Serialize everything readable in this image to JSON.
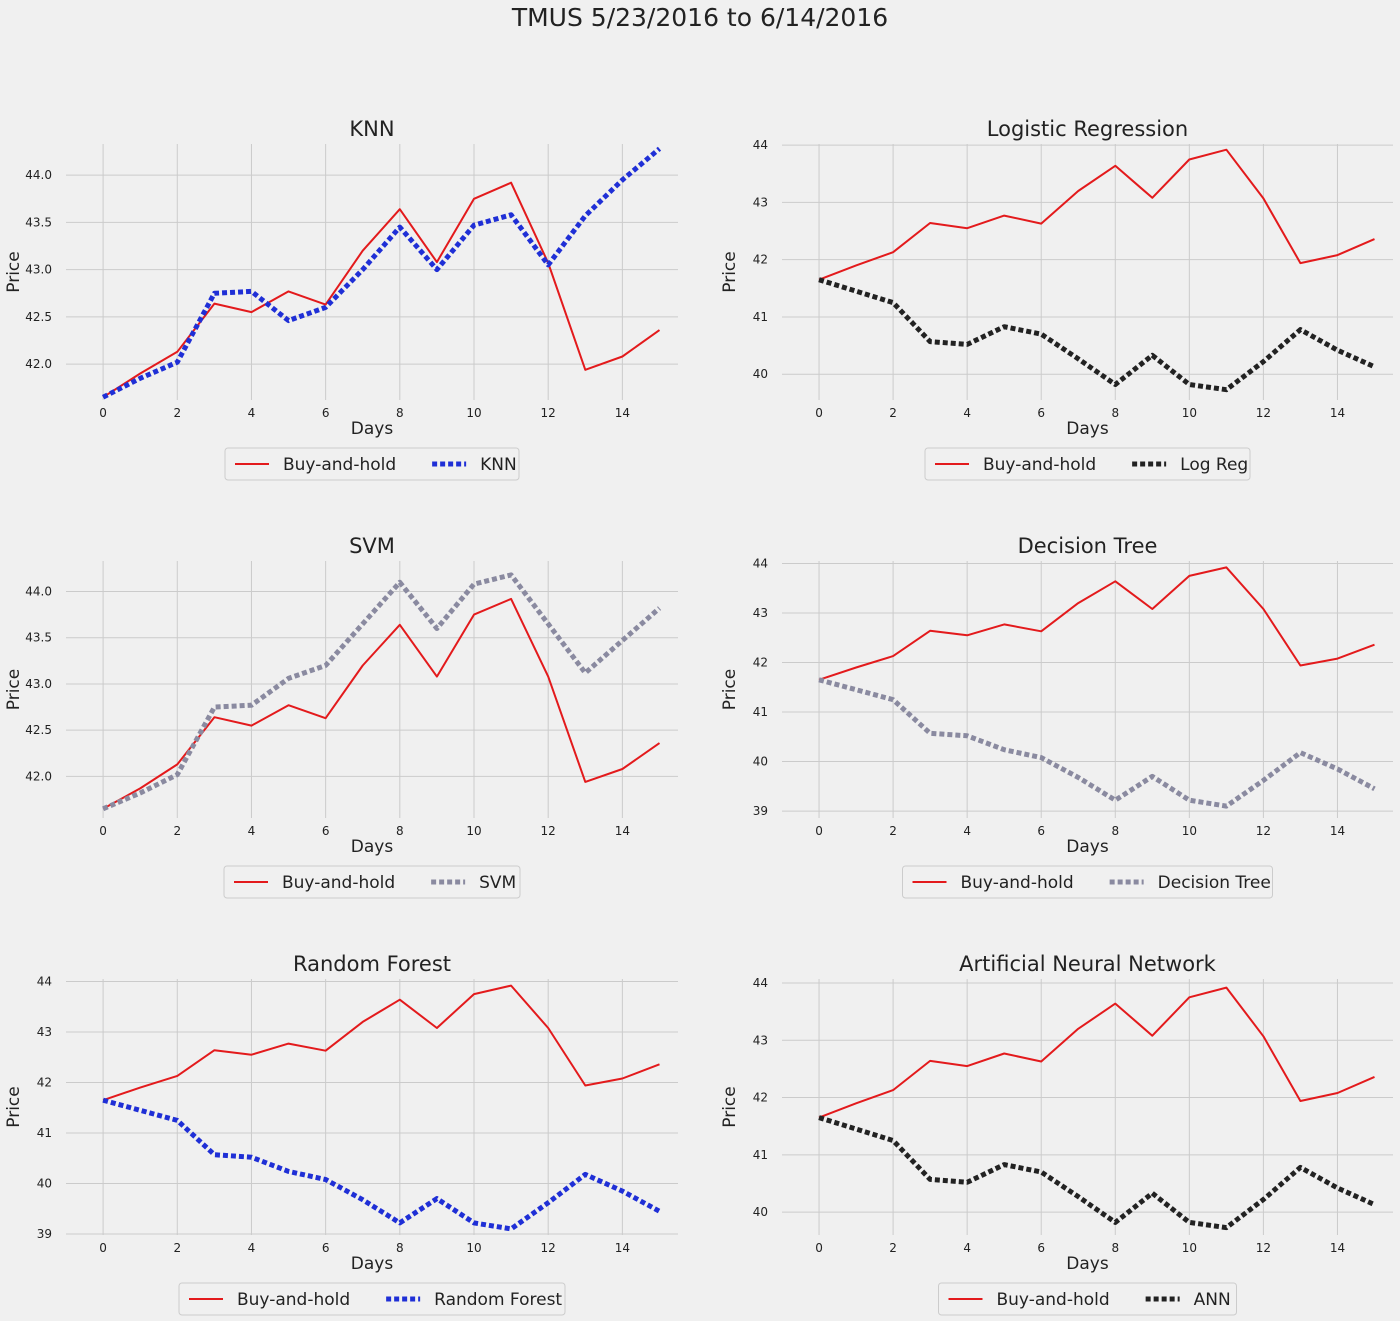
{
  "title": "TMUS 5/23/2016 to 6/14/2016",
  "colors": {
    "background": "#f0f0f0",
    "grid": "#cbcbcb",
    "buyhold": "#e31a1c",
    "blue": "#1f2fd6",
    "black": "#222222",
    "gray": "#8a8aa0"
  },
  "chart_data": [
    {
      "type": "line",
      "title": "KNN",
      "xlabel": "Days",
      "ylabel": "Price",
      "xlim": [
        -1,
        15.5
      ],
      "ylim": [
        41.62,
        44.33
      ],
      "xticks": [
        0,
        2,
        4,
        6,
        8,
        10,
        12,
        14
      ],
      "yticks": [
        42.0,
        42.5,
        43.0,
        43.5,
        44.0
      ],
      "ytick_labels": [
        "42.0",
        "42.5",
        "43.0",
        "43.5",
        "44.0"
      ],
      "x": [
        0,
        1,
        2,
        3,
        4,
        5,
        6,
        7,
        8,
        9,
        10,
        11,
        12,
        13,
        14,
        15
      ],
      "series": [
        {
          "name": "Buy-and-hold",
          "style": "solid",
          "color": "#e31a1c",
          "values": [
            41.65,
            41.9,
            42.13,
            42.64,
            42.55,
            42.77,
            42.63,
            43.2,
            43.64,
            43.08,
            43.75,
            43.92,
            43.07,
            41.94,
            42.08,
            42.36
          ]
        },
        {
          "name": "KNN",
          "style": "dotted",
          "color": "#1f2fd6",
          "values": [
            41.65,
            41.85,
            42.02,
            42.75,
            42.77,
            42.46,
            42.6,
            43.0,
            43.45,
            43.0,
            43.47,
            43.58,
            43.05,
            43.57,
            43.95,
            44.28
          ]
        }
      ],
      "legend": "below"
    },
    {
      "type": "line",
      "title": "Logistic Regression",
      "xlabel": "Days",
      "ylabel": "Price",
      "xlim": [
        -1,
        15.5
      ],
      "ylim": [
        39.55,
        44.02
      ],
      "xticks": [
        0,
        2,
        4,
        6,
        8,
        10,
        12,
        14
      ],
      "yticks": [
        40,
        41,
        42,
        43,
        44
      ],
      "ytick_labels": [
        "40",
        "41",
        "42",
        "43",
        "44"
      ],
      "x": [
        0,
        1,
        2,
        3,
        4,
        5,
        6,
        7,
        8,
        9,
        10,
        11,
        12,
        13,
        14,
        15
      ],
      "series": [
        {
          "name": "Buy-and-hold",
          "style": "solid",
          "color": "#e31a1c",
          "values": [
            41.65,
            41.9,
            42.13,
            42.64,
            42.55,
            42.77,
            42.63,
            43.2,
            43.64,
            43.08,
            43.75,
            43.92,
            43.07,
            41.94,
            42.08,
            42.36
          ]
        },
        {
          "name": "Log Reg",
          "style": "dotted",
          "color": "#222222",
          "values": [
            41.65,
            41.45,
            41.25,
            40.57,
            40.52,
            40.83,
            40.7,
            40.27,
            39.82,
            40.33,
            39.82,
            39.73,
            40.22,
            40.78,
            40.42,
            40.13
          ]
        }
      ],
      "legend": "below"
    },
    {
      "type": "line",
      "title": "SVM",
      "xlabel": "Days",
      "ylabel": "Price",
      "xlim": [
        -1,
        15.5
      ],
      "ylim": [
        41.55,
        44.33
      ],
      "xticks": [
        0,
        2,
        4,
        6,
        8,
        10,
        12,
        14
      ],
      "yticks": [
        42.0,
        42.5,
        43.0,
        43.5,
        44.0
      ],
      "ytick_labels": [
        "42.0",
        "42.5",
        "43.0",
        "43.5",
        "44.0"
      ],
      "x": [
        0,
        1,
        2,
        3,
        4,
        5,
        6,
        7,
        8,
        9,
        10,
        11,
        12,
        13,
        14,
        15
      ],
      "series": [
        {
          "name": "Buy-and-hold",
          "style": "solid",
          "color": "#e31a1c",
          "values": [
            41.65,
            41.87,
            42.13,
            42.64,
            42.55,
            42.77,
            42.63,
            43.2,
            43.64,
            43.08,
            43.75,
            43.92,
            43.08,
            41.94,
            42.08,
            42.36
          ]
        },
        {
          "name": "SVM",
          "style": "dotted",
          "color": "#8a8aa0",
          "values": [
            41.65,
            41.82,
            42.02,
            42.75,
            42.77,
            43.06,
            43.2,
            43.65,
            44.1,
            43.6,
            44.08,
            44.18,
            43.65,
            43.12,
            43.47,
            43.82
          ]
        }
      ],
      "legend": "below"
    },
    {
      "type": "line",
      "title": "Decision Tree",
      "xlabel": "Days",
      "ylabel": "Price",
      "xlim": [
        -1,
        15.5
      ],
      "ylim": [
        38.86,
        44.05
      ],
      "xticks": [
        0,
        2,
        4,
        6,
        8,
        10,
        12,
        14
      ],
      "yticks": [
        39,
        40,
        41,
        42,
        43,
        44
      ],
      "ytick_labels": [
        "39",
        "40",
        "41",
        "42",
        "43",
        "44"
      ],
      "x": [
        0,
        1,
        2,
        3,
        4,
        5,
        6,
        7,
        8,
        9,
        10,
        11,
        12,
        13,
        14,
        15
      ],
      "series": [
        {
          "name": "Buy-and-hold",
          "style": "solid",
          "color": "#e31a1c",
          "values": [
            41.65,
            41.9,
            42.13,
            42.64,
            42.55,
            42.77,
            42.63,
            43.2,
            43.64,
            43.08,
            43.75,
            43.92,
            43.08,
            41.94,
            42.08,
            42.36
          ]
        },
        {
          "name": "Decision Tree",
          "style": "dotted",
          "color": "#8a8aa0",
          "values": [
            41.65,
            41.45,
            41.25,
            40.57,
            40.52,
            40.24,
            40.08,
            39.68,
            39.22,
            39.7,
            39.22,
            39.1,
            39.62,
            40.18,
            39.85,
            39.45
          ]
        }
      ],
      "legend": "below"
    },
    {
      "type": "line",
      "title": "Random Forest",
      "xlabel": "Days",
      "ylabel": "Price",
      "xlim": [
        -1,
        15.5
      ],
      "ylim": [
        38.98,
        44.05
      ],
      "xticks": [
        0,
        2,
        4,
        6,
        8,
        10,
        12,
        14
      ],
      "yticks": [
        39,
        40,
        41,
        42,
        43,
        44
      ],
      "ytick_labels": [
        "39",
        "40",
        "41",
        "42",
        "43",
        "44"
      ],
      "x": [
        0,
        1,
        2,
        3,
        4,
        5,
        6,
        7,
        8,
        9,
        10,
        11,
        12,
        13,
        14,
        15
      ],
      "series": [
        {
          "name": "Buy-and-hold",
          "style": "solid",
          "color": "#e31a1c",
          "values": [
            41.65,
            41.9,
            42.13,
            42.64,
            42.55,
            42.77,
            42.63,
            43.2,
            43.64,
            43.08,
            43.75,
            43.92,
            43.08,
            41.94,
            42.08,
            42.36
          ]
        },
        {
          "name": "Random Forest",
          "style": "dotted",
          "color": "#1f2fd6",
          "values": [
            41.65,
            41.45,
            41.25,
            40.57,
            40.52,
            40.24,
            40.08,
            39.68,
            39.22,
            39.7,
            39.22,
            39.1,
            39.62,
            40.18,
            39.85,
            39.45
          ]
        }
      ],
      "legend": "below"
    },
    {
      "type": "line",
      "title": "Artificial Neural Network",
      "xlabel": "Days",
      "ylabel": "Price",
      "xlim": [
        -1,
        15.5
      ],
      "ylim": [
        39.6,
        44.07
      ],
      "xticks": [
        0,
        2,
        4,
        6,
        8,
        10,
        12,
        14
      ],
      "yticks": [
        40,
        41,
        42,
        43,
        44
      ],
      "ytick_labels": [
        "40",
        "41",
        "42",
        "43",
        "44"
      ],
      "x": [
        0,
        1,
        2,
        3,
        4,
        5,
        6,
        7,
        8,
        9,
        10,
        11,
        12,
        13,
        14,
        15
      ],
      "series": [
        {
          "name": "Buy-and-hold",
          "style": "solid",
          "color": "#e31a1c",
          "values": [
            41.65,
            41.9,
            42.13,
            42.64,
            42.55,
            42.77,
            42.63,
            43.2,
            43.64,
            43.08,
            43.75,
            43.92,
            43.07,
            41.94,
            42.08,
            42.36
          ]
        },
        {
          "name": "ANN",
          "style": "dotted",
          "color": "#222222",
          "values": [
            41.65,
            41.45,
            41.25,
            40.57,
            40.52,
            40.83,
            40.7,
            40.27,
            39.82,
            40.33,
            39.82,
            39.73,
            40.22,
            40.78,
            40.42,
            40.13
          ]
        }
      ],
      "legend": "below"
    }
  ]
}
